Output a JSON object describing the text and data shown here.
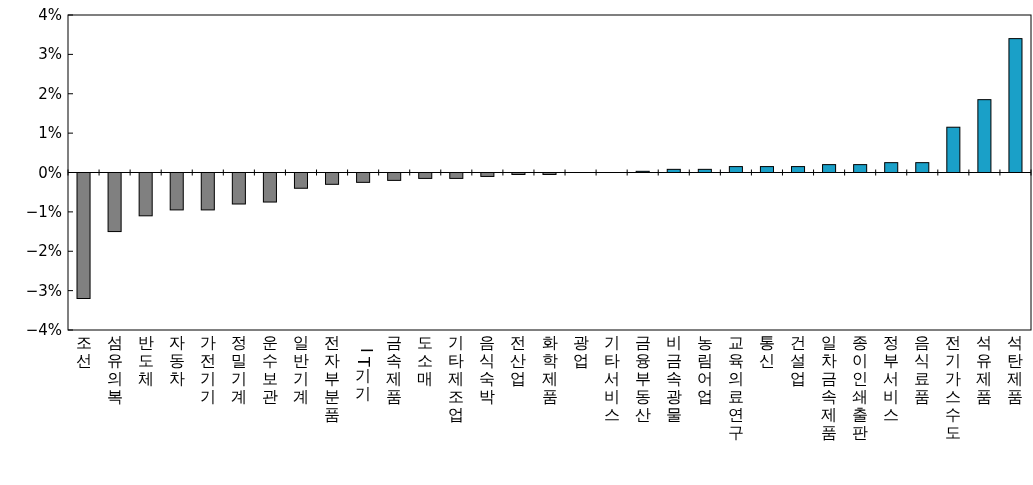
{
  "chart_data": {
    "type": "bar",
    "categories": [
      "조선",
      "섬유의복",
      "반도체",
      "자동차",
      "가전기기",
      "정밀기계",
      "운수보관",
      "일반기계",
      "전자부분품",
      "IT 기기",
      "금속제품",
      "도소매",
      "기타제조업",
      "음식숙박",
      "전산업",
      "화학제품",
      "광업",
      "기타서비스",
      "금융부동산",
      "비금속광물",
      "농림어업",
      "교육의료연구",
      "통신",
      "건설업",
      "일차금속제품",
      "종이인쇄출판",
      "정부서비스",
      "음식료품",
      "전기가스수도",
      "석유제품",
      "석탄제품"
    ],
    "values": [
      -3.2,
      -1.5,
      -1.1,
      -0.95,
      -0.95,
      -0.8,
      -0.75,
      -0.4,
      -0.3,
      -0.25,
      -0.2,
      -0.15,
      -0.15,
      -0.1,
      -0.05,
      -0.05,
      0,
      0,
      0.03,
      0.08,
      0.08,
      0.15,
      0.15,
      0.15,
      0.2,
      0.2,
      0.25,
      0.25,
      1.15,
      1.85,
      3.4
    ],
    "colors": [
      "#808080",
      "#808080",
      "#808080",
      "#808080",
      "#808080",
      "#808080",
      "#808080",
      "#808080",
      "#808080",
      "#808080",
      "#808080",
      "#808080",
      "#808080",
      "#808080",
      "#808080",
      "#808080",
      "#808080",
      "#808080",
      "#1aa0c8",
      "#1aa0c8",
      "#1aa0c8",
      "#1aa0c8",
      "#1aa0c8",
      "#1aa0c8",
      "#1aa0c8",
      "#1aa0c8",
      "#1aa0c8",
      "#1aa0c8",
      "#1aa0c8",
      "#1aa0c8",
      "#1aa0c8"
    ],
    "ylim": [
      -4,
      4
    ],
    "yticks": [
      {
        "value": 4,
        "label": "4%"
      },
      {
        "value": 3,
        "label": "3%"
      },
      {
        "value": 2,
        "label": "2%"
      },
      {
        "value": 1,
        "label": "1%"
      },
      {
        "value": 0,
        "label": "0%"
      },
      {
        "value": -1,
        "label": "−1%"
      },
      {
        "value": -2,
        "label": "−2%"
      },
      {
        "value": -3,
        "label": "−3%"
      },
      {
        "value": -4,
        "label": "−4%"
      }
    ]
  }
}
